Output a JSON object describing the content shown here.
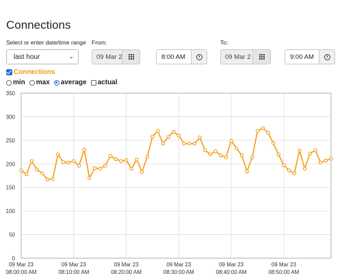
{
  "page": {
    "title": "Connections"
  },
  "range": {
    "label": "Select or enter date/time range",
    "selected": "last hour"
  },
  "from": {
    "label": "From:",
    "date": "09 Mar 2",
    "time": "8:00 AM"
  },
  "to": {
    "label": "To:",
    "date": "09 Mar 2",
    "time": "9:00 AM"
  },
  "series_toggle": {
    "label": "Connections",
    "checked": true
  },
  "modes": [
    {
      "label": "min",
      "type": "radio",
      "selected": false
    },
    {
      "label": "max",
      "type": "radio",
      "selected": false
    },
    {
      "label": "average",
      "type": "radio",
      "selected": true
    },
    {
      "label": "actual",
      "type": "checkbox",
      "selected": false
    }
  ],
  "colors": {
    "series": "#f39a11",
    "accent": "#1e6fd9",
    "grid": "#dddddd"
  },
  "chart_data": {
    "type": "line",
    "title": "",
    "xlabel": "",
    "ylabel": "",
    "ylim": [
      0,
      350
    ],
    "y_ticks": [
      0,
      50,
      100,
      150,
      200,
      250,
      300,
      350
    ],
    "x_ticks": [
      {
        "line1": "09 Mar 23",
        "line2": "08:00:00 AM",
        "minute": 0
      },
      {
        "line1": "09 Mar 23",
        "line2": "08:10:00 AM",
        "minute": 10
      },
      {
        "line1": "09 Mar 23",
        "line2": "08:20:00 AM",
        "minute": 20
      },
      {
        "line1": "09 Mar 23",
        "line2": "08:30:00 AM",
        "minute": 30
      },
      {
        "line1": "09 Mar 23",
        "line2": "08:40:00 AM",
        "minute": 40
      },
      {
        "line1": "09 Mar 23",
        "line2": "08:50:00 AM",
        "minute": 50
      }
    ],
    "x_range_minutes": [
      0,
      59
    ],
    "grid": true,
    "legend": "none",
    "series": [
      {
        "name": "Connections",
        "x_minutes": [
          0,
          1,
          2,
          3,
          4,
          5,
          6,
          7,
          8,
          9,
          10,
          11,
          12,
          13,
          14,
          15,
          16,
          17,
          18,
          19,
          20,
          21,
          22,
          23,
          24,
          25,
          26,
          27,
          28,
          29,
          30,
          31,
          32,
          33,
          34,
          35,
          36,
          37,
          38,
          39,
          40,
          41,
          42,
          43,
          44,
          45,
          46,
          47,
          48,
          49,
          50,
          51,
          52,
          53,
          54,
          55,
          56,
          57,
          58,
          59
        ],
        "values": [
          186,
          178,
          206,
          188,
          180,
          167,
          168,
          220,
          204,
          203,
          206,
          196,
          230,
          170,
          191,
          190,
          196,
          217,
          210,
          206,
          208,
          190,
          209,
          183,
          215,
          258,
          270,
          243,
          257,
          268,
          260,
          243,
          243,
          243,
          256,
          229,
          220,
          227,
          218,
          214,
          249,
          233,
          218,
          184,
          214,
          270,
          276,
          266,
          244,
          220,
          197,
          186,
          180,
          228,
          190,
          222,
          229,
          203,
          207,
          211
        ]
      }
    ]
  }
}
